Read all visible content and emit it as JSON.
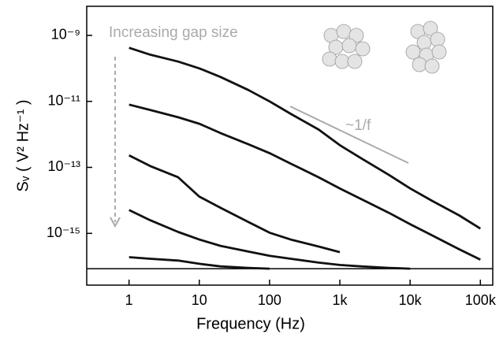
{
  "chart_data": {
    "type": "line",
    "xlabel": "Frequency (Hz)",
    "ylabel": "Sᵥ ( V² Hz⁻¹ )",
    "annotations": [
      "Increasing gap size",
      "~1/f"
    ],
    "log_x": true,
    "log_y": true,
    "xlim": [
      0.25,
      150000
    ],
    "ylim": [
      2.7e-17,
      7.6e-09
    ],
    "xticks": [
      1,
      10,
      100,
      {
        "value": 1000,
        "label": "1k"
      },
      {
        "value": 10000,
        "label": "10k"
      },
      {
        "value": 100000,
        "label": "100k"
      }
    ],
    "yticks": [
      {
        "value": 1e-09,
        "label": "10⁻⁹"
      },
      {
        "value": 1e-11,
        "label": "10⁻¹¹"
      },
      {
        "value": 1e-13,
        "label": "10⁻¹³"
      },
      {
        "value": 1e-15,
        "label": "10⁻¹⁵"
      }
    ],
    "reference_line": 8.5e-17,
    "x": [
      1,
      2,
      5,
      10,
      20,
      50,
      100,
      200,
      500,
      1000,
      2000,
      5000,
      10000,
      20000,
      50000,
      100000
    ],
    "series": [
      {
        "color": "#111111",
        "values": [
          4.2e-10,
          2.6e-10,
          1.6e-10,
          1e-10,
          5.5e-11,
          2.2e-11,
          1e-11,
          4.2e-12,
          1.4e-12,
          4.7e-13,
          1.9e-13,
          5.9e-14,
          2.3e-14,
          1e-14,
          3.5e-15,
          1.4e-15
        ]
      },
      {
        "color": "#111111",
        "values": [
          8e-12,
          5.5e-12,
          3.3e-12,
          2.1e-12,
          1.1e-12,
          5e-13,
          2.7e-13,
          1.3e-13,
          5e-14,
          2.3e-14,
          1.1e-14,
          4.2e-15,
          1.9e-15,
          9e-16,
          3.3e-16,
          1.6e-16
        ]
      },
      {
        "color": "#111111",
        "values": [
          2.3e-13,
          1.1e-13,
          5e-14,
          1.3e-14,
          6e-15,
          2.2e-15,
          1.05e-15,
          6.5e-16,
          4e-16,
          2.7e-16,
          null,
          null,
          null,
          null,
          null,
          null
        ]
      },
      {
        "color": "#111111",
        "values": [
          5.1e-15,
          2.5e-15,
          1.1e-15,
          6.5e-16,
          4.2e-16,
          2.8e-16,
          2.1e-16,
          1.7e-16,
          1.3e-16,
          1.1e-16,
          1e-16,
          9e-17,
          8.5e-17,
          null,
          null,
          null
        ]
      },
      {
        "color": "#111111",
        "values": [
          1.9e-16,
          1.7e-16,
          1.5e-16,
          1.2e-16,
          1e-16,
          9e-17,
          8.5e-17,
          null,
          null,
          null,
          null,
          null,
          null,
          null,
          null,
          null
        ]
      }
    ]
  }
}
